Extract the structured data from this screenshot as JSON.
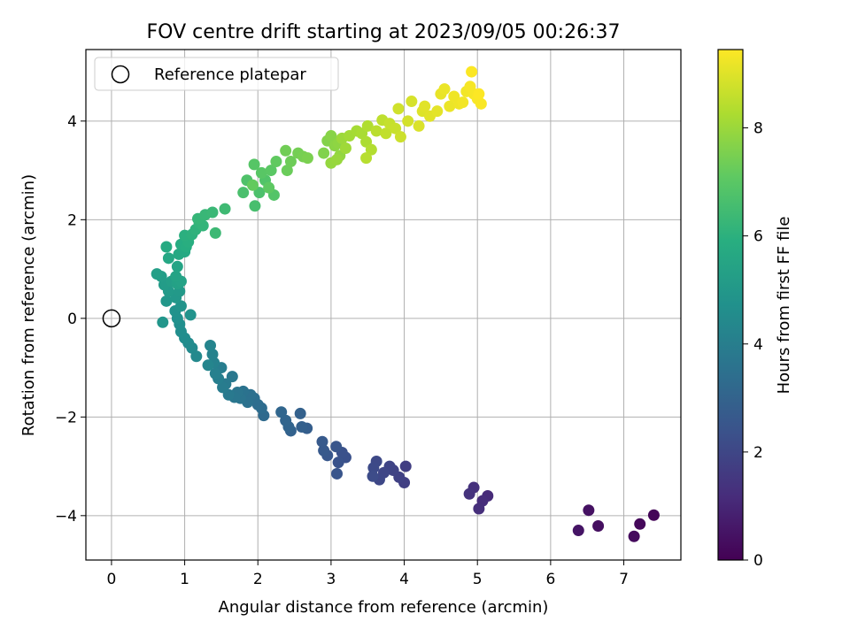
{
  "chart_data": {
    "type": "scatter",
    "title": "FOV centre drift starting at 2023/09/05 00:26:37",
    "xlabel": "Angular distance from reference (arcmin)",
    "ylabel": "Rotation from reference (arcmin)",
    "xlim": [
      -0.35,
      7.78
    ],
    "ylim": [
      -4.9,
      5.45
    ],
    "xticks": [
      "0",
      "1",
      "2",
      "3",
      "4",
      "5",
      "6",
      "7"
    ],
    "yticks": [
      "−4",
      "−2",
      "0",
      "2",
      "4"
    ],
    "grid": true,
    "legend": {
      "position": "top-left",
      "entries": [
        "Reference platepar"
      ]
    },
    "reference_point": {
      "x": 0,
      "y": 0
    },
    "colorbar": {
      "label": "Hours from first FF file",
      "range": [
        0,
        9.45
      ],
      "ticks": [
        "0",
        "2",
        "4",
        "6",
        "8"
      ],
      "colormap": "viridis"
    },
    "series": [
      {
        "points": [
          {
            "x": 7.41,
            "y": -3.99,
            "c": 0.12
          },
          {
            "x": 7.22,
            "y": -4.17,
            "c": 0.2
          },
          {
            "x": 7.14,
            "y": -4.42,
            "c": 0.28
          },
          {
            "x": 6.65,
            "y": -4.21,
            "c": 0.38
          },
          {
            "x": 6.52,
            "y": -3.89,
            "c": 0.45
          },
          {
            "x": 6.38,
            "y": -4.3,
            "c": 0.52
          },
          {
            "x": 5.14,
            "y": -3.6,
            "c": 1.15
          },
          {
            "x": 5.07,
            "y": -3.7,
            "c": 1.22
          },
          {
            "x": 5.02,
            "y": -3.86,
            "c": 1.28
          },
          {
            "x": 4.95,
            "y": -3.43,
            "c": 1.34
          },
          {
            "x": 4.89,
            "y": -3.56,
            "c": 1.4
          },
          {
            "x": 4.02,
            "y": -3.0,
            "c": 1.75
          },
          {
            "x": 4.0,
            "y": -3.33,
            "c": 1.8
          },
          {
            "x": 3.93,
            "y": -3.22,
            "c": 1.85
          },
          {
            "x": 3.85,
            "y": -3.08,
            "c": 1.9
          },
          {
            "x": 3.8,
            "y": -3.0,
            "c": 1.95
          },
          {
            "x": 3.72,
            "y": -3.13,
            "c": 2.0
          },
          {
            "x": 3.66,
            "y": -3.27,
            "c": 2.05
          },
          {
            "x": 3.62,
            "y": -2.9,
            "c": 2.1
          },
          {
            "x": 3.58,
            "y": -3.03,
            "c": 2.15
          },
          {
            "x": 3.57,
            "y": -3.2,
            "c": 2.2
          },
          {
            "x": 3.2,
            "y": -2.82,
            "c": 2.35
          },
          {
            "x": 3.15,
            "y": -2.72,
            "c": 2.4
          },
          {
            "x": 3.1,
            "y": -2.92,
            "c": 2.45
          },
          {
            "x": 3.08,
            "y": -3.15,
            "c": 2.5
          },
          {
            "x": 3.07,
            "y": -2.6,
            "c": 2.55
          },
          {
            "x": 2.95,
            "y": -2.78,
            "c": 2.6
          },
          {
            "x": 2.9,
            "y": -2.68,
            "c": 2.65
          },
          {
            "x": 2.88,
            "y": -2.5,
            "c": 2.7
          },
          {
            "x": 2.67,
            "y": -2.23,
            "c": 2.85
          },
          {
            "x": 2.6,
            "y": -2.2,
            "c": 2.9
          },
          {
            "x": 2.58,
            "y": -1.93,
            "c": 2.95
          },
          {
            "x": 2.45,
            "y": -2.28,
            "c": 3.0
          },
          {
            "x": 2.42,
            "y": -2.2,
            "c": 3.05
          },
          {
            "x": 2.38,
            "y": -2.07,
            "c": 3.1
          },
          {
            "x": 2.32,
            "y": -1.9,
            "c": 3.15
          },
          {
            "x": 2.08,
            "y": -1.97,
            "c": 3.3
          },
          {
            "x": 2.05,
            "y": -1.82,
            "c": 3.35
          },
          {
            "x": 2.0,
            "y": -1.75,
            "c": 3.4
          },
          {
            "x": 1.95,
            "y": -1.62,
            "c": 3.45
          },
          {
            "x": 1.9,
            "y": -1.55,
            "c": 3.5
          },
          {
            "x": 1.86,
            "y": -1.7,
            "c": 3.55
          },
          {
            "x": 1.8,
            "y": -1.48,
            "c": 3.6
          },
          {
            "x": 1.76,
            "y": -1.62,
            "c": 3.65
          },
          {
            "x": 1.72,
            "y": -1.5,
            "c": 3.7
          },
          {
            "x": 1.68,
            "y": -1.6,
            "c": 3.75
          },
          {
            "x": 1.65,
            "y": -1.18,
            "c": 3.8
          },
          {
            "x": 1.6,
            "y": -1.55,
            "c": 3.85
          },
          {
            "x": 1.56,
            "y": -1.33,
            "c": 3.9
          },
          {
            "x": 1.52,
            "y": -1.4,
            "c": 3.95
          },
          {
            "x": 1.5,
            "y": -1.0,
            "c": 4.0
          },
          {
            "x": 1.46,
            "y": -1.22,
            "c": 4.05
          },
          {
            "x": 1.42,
            "y": -1.12,
            "c": 4.1
          },
          {
            "x": 1.4,
            "y": -0.9,
            "c": 4.15
          },
          {
            "x": 1.38,
            "y": -0.73,
            "c": 4.2
          },
          {
            "x": 1.35,
            "y": -0.55,
            "c": 4.25
          },
          {
            "x": 1.32,
            "y": -0.95,
            "c": 4.3
          },
          {
            "x": 1.16,
            "y": -0.77,
            "c": 4.45
          },
          {
            "x": 1.1,
            "y": -0.6,
            "c": 4.5
          },
          {
            "x": 1.05,
            "y": -0.5,
            "c": 4.55
          },
          {
            "x": 1.0,
            "y": -0.4,
            "c": 4.6
          },
          {
            "x": 0.95,
            "y": -0.27,
            "c": 4.65
          },
          {
            "x": 0.93,
            "y": -0.12,
            "c": 4.7
          },
          {
            "x": 0.9,
            "y": 0.0,
            "c": 4.75
          },
          {
            "x": 0.87,
            "y": 0.15,
            "c": 4.8
          },
          {
            "x": 1.08,
            "y": 0.07,
            "c": 4.85
          },
          {
            "x": 0.95,
            "y": 0.25,
            "c": 4.9
          },
          {
            "x": 0.7,
            "y": -0.08,
            "c": 4.95
          },
          {
            "x": 0.75,
            "y": 0.35,
            "c": 5.0
          },
          {
            "x": 0.88,
            "y": 0.42,
            "c": 5.05
          },
          {
            "x": 0.93,
            "y": 0.55,
            "c": 5.1
          },
          {
            "x": 0.78,
            "y": 0.55,
            "c": 5.15
          },
          {
            "x": 0.72,
            "y": 0.68,
            "c": 5.2
          },
          {
            "x": 0.68,
            "y": 0.85,
            "c": 5.25
          },
          {
            "x": 0.82,
            "y": 0.75,
            "c": 5.3
          },
          {
            "x": 0.62,
            "y": 0.9,
            "c": 5.35
          },
          {
            "x": 0.9,
            "y": 0.7,
            "c": 5.4
          },
          {
            "x": 0.95,
            "y": 0.75,
            "c": 5.45
          },
          {
            "x": 0.88,
            "y": 0.85,
            "c": 5.5
          },
          {
            "x": 0.9,
            "y": 1.05,
            "c": 5.55
          },
          {
            "x": 0.78,
            "y": 1.22,
            "c": 5.65
          },
          {
            "x": 0.92,
            "y": 1.3,
            "c": 5.7
          },
          {
            "x": 1.0,
            "y": 1.35,
            "c": 5.75
          },
          {
            "x": 0.75,
            "y": 1.45,
            "c": 5.8
          },
          {
            "x": 0.95,
            "y": 1.5,
            "c": 5.85
          },
          {
            "x": 1.02,
            "y": 1.45,
            "c": 5.9
          },
          {
            "x": 1.05,
            "y": 1.55,
            "c": 5.95
          },
          {
            "x": 1.0,
            "y": 1.68,
            "c": 6.0
          },
          {
            "x": 1.1,
            "y": 1.7,
            "c": 6.05
          },
          {
            "x": 1.15,
            "y": 1.8,
            "c": 6.1
          },
          {
            "x": 1.2,
            "y": 1.92,
            "c": 6.15
          },
          {
            "x": 1.25,
            "y": 1.88,
            "c": 6.2
          },
          {
            "x": 1.18,
            "y": 2.02,
            "c": 6.25
          },
          {
            "x": 1.28,
            "y": 2.1,
            "c": 6.3
          },
          {
            "x": 1.38,
            "y": 2.15,
            "c": 6.35
          },
          {
            "x": 1.42,
            "y": 1.73,
            "c": 6.4
          },
          {
            "x": 1.55,
            "y": 2.22,
            "c": 6.45
          },
          {
            "x": 1.96,
            "y": 2.28,
            "c": 6.65
          },
          {
            "x": 1.8,
            "y": 2.55,
            "c": 6.7
          },
          {
            "x": 2.02,
            "y": 2.55,
            "c": 6.75
          },
          {
            "x": 1.85,
            "y": 2.8,
            "c": 6.8
          },
          {
            "x": 2.1,
            "y": 2.8,
            "c": 6.85
          },
          {
            "x": 2.22,
            "y": 2.5,
            "c": 6.9
          },
          {
            "x": 1.95,
            "y": 3.12,
            "c": 6.95
          },
          {
            "x": 2.05,
            "y": 2.95,
            "c": 7.0
          },
          {
            "x": 2.18,
            "y": 3.0,
            "c": 7.05
          },
          {
            "x": 2.15,
            "y": 2.65,
            "c": 7.1
          },
          {
            "x": 2.25,
            "y": 3.18,
            "c": 7.15
          },
          {
            "x": 1.93,
            "y": 2.7,
            "c": 7.2
          },
          {
            "x": 2.4,
            "y": 3.0,
            "c": 7.3
          },
          {
            "x": 2.45,
            "y": 3.18,
            "c": 7.35
          },
          {
            "x": 2.38,
            "y": 3.4,
            "c": 7.4
          },
          {
            "x": 2.55,
            "y": 3.35,
            "c": 7.45
          },
          {
            "x": 2.62,
            "y": 3.28,
            "c": 7.5
          },
          {
            "x": 2.68,
            "y": 3.25,
            "c": 7.55
          },
          {
            "x": 2.9,
            "y": 3.35,
            "c": 7.65
          },
          {
            "x": 2.95,
            "y": 3.6,
            "c": 7.7
          },
          {
            "x": 3.0,
            "y": 3.7,
            "c": 7.75
          },
          {
            "x": 3.05,
            "y": 3.5,
            "c": 7.8
          },
          {
            "x": 3.1,
            "y": 3.55,
            "c": 7.85
          },
          {
            "x": 3.12,
            "y": 3.3,
            "c": 7.9
          },
          {
            "x": 3.0,
            "y": 3.15,
            "c": 7.95
          },
          {
            "x": 3.08,
            "y": 3.22,
            "c": 8.0
          },
          {
            "x": 3.15,
            "y": 3.65,
            "c": 8.05
          },
          {
            "x": 3.2,
            "y": 3.45,
            "c": 8.1
          },
          {
            "x": 3.25,
            "y": 3.7,
            "c": 8.15
          },
          {
            "x": 3.35,
            "y": 3.8,
            "c": 8.2
          },
          {
            "x": 3.42,
            "y": 3.75,
            "c": 8.25
          },
          {
            "x": 3.48,
            "y": 3.58,
            "c": 8.3
          },
          {
            "x": 3.5,
            "y": 3.9,
            "c": 8.35
          },
          {
            "x": 3.55,
            "y": 3.42,
            "c": 8.4
          },
          {
            "x": 3.48,
            "y": 3.25,
            "c": 8.45
          },
          {
            "x": 3.62,
            "y": 3.8,
            "c": 8.5
          },
          {
            "x": 3.7,
            "y": 4.02,
            "c": 8.55
          },
          {
            "x": 3.75,
            "y": 3.75,
            "c": 8.6
          },
          {
            "x": 3.8,
            "y": 3.95,
            "c": 8.65
          },
          {
            "x": 3.88,
            "y": 3.85,
            "c": 8.7
          },
          {
            "x": 3.95,
            "y": 3.68,
            "c": 8.75
          },
          {
            "x": 3.92,
            "y": 4.25,
            "c": 8.8
          },
          {
            "x": 4.05,
            "y": 4.0,
            "c": 8.85
          },
          {
            "x": 4.1,
            "y": 4.4,
            "c": 8.9
          },
          {
            "x": 4.2,
            "y": 3.9,
            "c": 8.95
          },
          {
            "x": 4.25,
            "y": 4.2,
            "c": 9.0
          },
          {
            "x": 4.28,
            "y": 4.3,
            "c": 9.05
          },
          {
            "x": 4.35,
            "y": 4.1,
            "c": 9.05
          },
          {
            "x": 4.45,
            "y": 4.2,
            "c": 9.1
          },
          {
            "x": 4.5,
            "y": 4.55,
            "c": 9.15
          },
          {
            "x": 4.55,
            "y": 4.65,
            "c": 9.2
          },
          {
            "x": 4.62,
            "y": 4.3,
            "c": 9.2
          },
          {
            "x": 4.68,
            "y": 4.5,
            "c": 9.25
          },
          {
            "x": 4.75,
            "y": 4.35,
            "c": 9.25
          },
          {
            "x": 4.8,
            "y": 4.38,
            "c": 9.3
          },
          {
            "x": 4.85,
            "y": 4.6,
            "c": 9.3
          },
          {
            "x": 4.9,
            "y": 4.7,
            "c": 9.35
          },
          {
            "x": 4.95,
            "y": 4.55,
            "c": 9.35
          },
          {
            "x": 5.0,
            "y": 4.45,
            "c": 9.4
          },
          {
            "x": 5.05,
            "y": 4.35,
            "c": 9.4
          },
          {
            "x": 4.92,
            "y": 5.0,
            "c": 9.42
          },
          {
            "x": 5.02,
            "y": 4.55,
            "c": 9.44
          }
        ]
      }
    ]
  }
}
